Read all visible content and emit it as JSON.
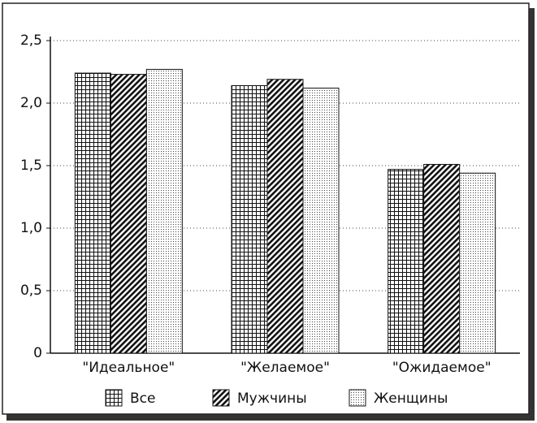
{
  "chart_data": {
    "type": "bar",
    "categories": [
      "\"Идеальное\"",
      "\"Желаемое\"",
      "\"Ожидаемое\""
    ],
    "series": [
      {
        "name": "Все",
        "color": "#111111",
        "pattern": "grid",
        "values": [
          2.24,
          2.14,
          1.47
        ]
      },
      {
        "name": "Мужчины",
        "color": "#111111",
        "pattern": "hatch",
        "values": [
          2.23,
          2.19,
          1.51
        ]
      },
      {
        "name": "Женщины",
        "color": "#111111",
        "pattern": "dots",
        "values": [
          2.27,
          2.12,
          1.44
        ]
      }
    ],
    "ylim": [
      0,
      2.5
    ],
    "yticks": [
      0,
      {
        "value": 0.5,
        "label": "0,5"
      },
      {
        "value": 1,
        "label": "1,0"
      },
      {
        "value": 1.5,
        "label": "1,5"
      },
      {
        "value": 2,
        "label": "2,0"
      },
      {
        "value": 2.5,
        "label": "2,5"
      }
    ],
    "grid": true,
    "legend": "bottom"
  }
}
